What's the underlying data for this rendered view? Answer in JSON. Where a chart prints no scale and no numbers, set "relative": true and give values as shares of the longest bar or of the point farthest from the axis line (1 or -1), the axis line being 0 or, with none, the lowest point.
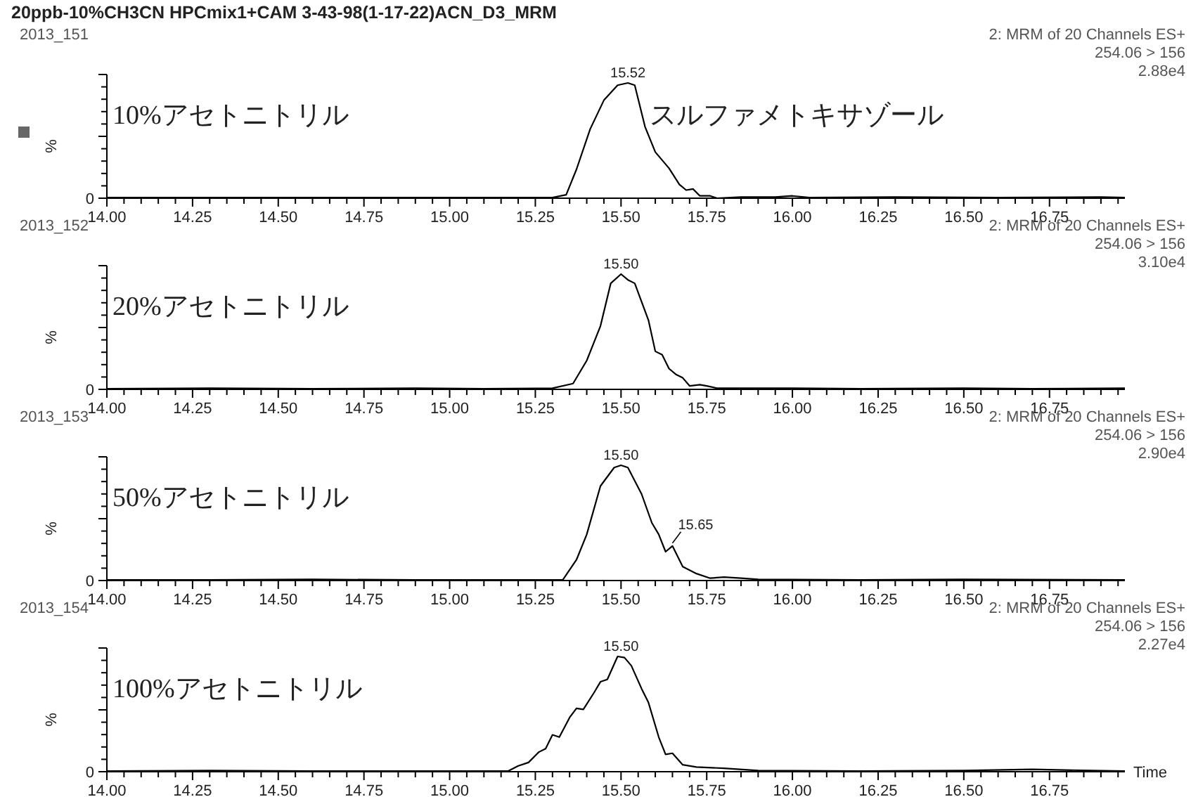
{
  "chart_data": [
    {
      "type": "line",
      "title": "20ppb-10%CH3CN HPCmix1+CAM 3-43-98(1-17-22)ACN_D3_MRM",
      "subtitle": "2013_151",
      "ylabel": "%",
      "relative": true,
      "xlim": [
        14,
        16.97
      ],
      "xticks": [
        {
          "value": 14,
          "label": "14.00"
        },
        {
          "value": 14.25,
          "label": "14.25"
        },
        {
          "value": 14.5,
          "label": "14.50"
        },
        {
          "value": 14.75,
          "label": "14.75"
        },
        {
          "value": 15,
          "label": "15.00"
        },
        {
          "value": 15.25,
          "label": "15.25"
        },
        {
          "value": 15.5,
          "label": "15.50"
        },
        {
          "value": 15.75,
          "label": "15.75"
        },
        {
          "value": 16,
          "label": "16.00"
        },
        {
          "value": 16.25,
          "label": "16.25"
        },
        {
          "value": 16.5,
          "label": "16.50"
        },
        {
          "value": 16.75,
          "label": "16.75"
        },
        {
          "value": 14.05,
          "label": null
        },
        {
          "value": 14.1,
          "label": null
        },
        {
          "value": 14.15,
          "label": null
        },
        {
          "value": 14.2,
          "label": null
        },
        {
          "value": 14.3,
          "label": null
        },
        {
          "value": 14.35,
          "label": null
        },
        {
          "value": 14.4,
          "label": null
        },
        {
          "value": 14.45,
          "label": null
        },
        {
          "value": 14.55,
          "label": null
        },
        {
          "value": 14.6,
          "label": null
        },
        {
          "value": 14.65,
          "label": null
        },
        {
          "value": 14.7,
          "label": null
        },
        {
          "value": 14.8,
          "label": null
        },
        {
          "value": 14.85,
          "label": null
        },
        {
          "value": 14.9,
          "label": null
        },
        {
          "value": 14.95,
          "label": null
        },
        {
          "value": 15.05,
          "label": null
        },
        {
          "value": 15.1,
          "label": null
        },
        {
          "value": 15.15,
          "label": null
        },
        {
          "value": 15.2,
          "label": null
        },
        {
          "value": 15.3,
          "label": null
        },
        {
          "value": 15.35,
          "label": null
        },
        {
          "value": 15.4,
          "label": null
        },
        {
          "value": 15.45,
          "label": null
        },
        {
          "value": 15.55,
          "label": null
        },
        {
          "value": 15.6,
          "label": null
        },
        {
          "value": 15.65,
          "label": null
        },
        {
          "value": 15.7,
          "label": null
        },
        {
          "value": 15.8,
          "label": null
        },
        {
          "value": 15.85,
          "label": null
        },
        {
          "value": 15.9,
          "label": null
        },
        {
          "value": 15.95,
          "label": null
        },
        {
          "value": 16.05,
          "label": null
        },
        {
          "value": 16.1,
          "label": null
        },
        {
          "value": 16.15,
          "label": null
        },
        {
          "value": 16.2,
          "label": null
        },
        {
          "value": 16.3,
          "label": null
        },
        {
          "value": 16.35,
          "label": null
        },
        {
          "value": 16.4,
          "label": null
        },
        {
          "value": 16.45,
          "label": null
        },
        {
          "value": 16.55,
          "label": null
        },
        {
          "value": 16.6,
          "label": null
        },
        {
          "value": 16.65,
          "label": null
        },
        {
          "value": 16.7,
          "label": null
        },
        {
          "value": 16.8,
          "label": null
        },
        {
          "value": 16.85,
          "label": null
        },
        {
          "value": 16.9,
          "label": null
        },
        {
          "value": 16.95,
          "label": null
        }
      ],
      "series": [
        {
          "color": "#000000",
          "x": [
            14.0,
            14.3,
            14.6,
            14.9,
            15.1,
            15.3,
            15.34,
            15.37,
            15.41,
            15.45,
            15.49,
            15.52,
            15.54,
            15.57,
            15.6,
            15.64,
            15.67,
            15.69,
            15.71,
            15.73,
            15.76,
            15.78,
            15.85,
            15.95,
            16.0,
            16.05,
            16.3,
            16.6,
            16.9,
            16.97
          ],
          "values": [
            0.005,
            0.005,
            0.005,
            0.005,
            0.005,
            0.005,
            0.03,
            0.25,
            0.6,
            0.85,
            0.98,
            1.0,
            0.98,
            0.62,
            0.4,
            0.26,
            0.12,
            0.07,
            0.08,
            0.02,
            0.02,
            0.0,
            0.01,
            0.01,
            0.02,
            0.005,
            0.01,
            0.005,
            0.01,
            0.005
          ]
        }
      ],
      "annotations": [
        "2: MRM of 20 Channels ES+",
        "254.06 > 156",
        "2.88e4",
        "0",
        "10%アセトニトリル",
        "スルファメトキサゾール",
        {
          "text": "15.52",
          "x": 15.52,
          "y": 1.0
        }
      ]
    },
    {
      "type": "line",
      "subtitle": "2013_152",
      "ylabel": "%",
      "relative": true,
      "xlim": [
        14,
        16.97
      ],
      "xticks": [
        {
          "value": 14,
          "label": "14.00"
        },
        {
          "value": 14.25,
          "label": "14.25"
        },
        {
          "value": 14.5,
          "label": "14.50"
        },
        {
          "value": 14.75,
          "label": "14.75"
        },
        {
          "value": 15,
          "label": "15.00"
        },
        {
          "value": 15.25,
          "label": "15.25"
        },
        {
          "value": 15.5,
          "label": "15.50"
        },
        {
          "value": 15.75,
          "label": "15.75"
        },
        {
          "value": 16,
          "label": "16.00"
        },
        {
          "value": 16.25,
          "label": "16.25"
        },
        {
          "value": 16.5,
          "label": "16.50"
        },
        {
          "value": 16.75,
          "label": "16.75"
        },
        {
          "value": 14.05,
          "label": null
        },
        {
          "value": 14.1,
          "label": null
        },
        {
          "value": 14.15,
          "label": null
        },
        {
          "value": 14.2,
          "label": null
        },
        {
          "value": 14.3,
          "label": null
        },
        {
          "value": 14.35,
          "label": null
        },
        {
          "value": 14.4,
          "label": null
        },
        {
          "value": 14.45,
          "label": null
        },
        {
          "value": 14.55,
          "label": null
        },
        {
          "value": 14.6,
          "label": null
        },
        {
          "value": 14.65,
          "label": null
        },
        {
          "value": 14.7,
          "label": null
        },
        {
          "value": 14.8,
          "label": null
        },
        {
          "value": 14.85,
          "label": null
        },
        {
          "value": 14.9,
          "label": null
        },
        {
          "value": 14.95,
          "label": null
        },
        {
          "value": 15.05,
          "label": null
        },
        {
          "value": 15.1,
          "label": null
        },
        {
          "value": 15.15,
          "label": null
        },
        {
          "value": 15.2,
          "label": null
        },
        {
          "value": 15.3,
          "label": null
        },
        {
          "value": 15.35,
          "label": null
        },
        {
          "value": 15.4,
          "label": null
        },
        {
          "value": 15.45,
          "label": null
        },
        {
          "value": 15.55,
          "label": null
        },
        {
          "value": 15.6,
          "label": null
        },
        {
          "value": 15.65,
          "label": null
        },
        {
          "value": 15.7,
          "label": null
        },
        {
          "value": 15.8,
          "label": null
        },
        {
          "value": 15.85,
          "label": null
        },
        {
          "value": 15.9,
          "label": null
        },
        {
          "value": 15.95,
          "label": null
        },
        {
          "value": 16.05,
          "label": null
        },
        {
          "value": 16.1,
          "label": null
        },
        {
          "value": 16.15,
          "label": null
        },
        {
          "value": 16.2,
          "label": null
        },
        {
          "value": 16.3,
          "label": null
        },
        {
          "value": 16.35,
          "label": null
        },
        {
          "value": 16.4,
          "label": null
        },
        {
          "value": 16.45,
          "label": null
        },
        {
          "value": 16.55,
          "label": null
        },
        {
          "value": 16.6,
          "label": null
        },
        {
          "value": 16.65,
          "label": null
        },
        {
          "value": 16.7,
          "label": null
        },
        {
          "value": 16.8,
          "label": null
        },
        {
          "value": 16.85,
          "label": null
        },
        {
          "value": 16.9,
          "label": null
        },
        {
          "value": 16.95,
          "label": null
        }
      ],
      "series": [
        {
          "color": "#000000",
          "x": [
            14.0,
            14.3,
            14.6,
            14.9,
            15.1,
            15.3,
            15.36,
            15.4,
            15.44,
            15.47,
            15.5,
            15.52,
            15.54,
            15.58,
            15.6,
            15.62,
            15.64,
            15.66,
            15.68,
            15.7,
            15.73,
            15.75,
            15.78,
            16.0,
            16.2,
            16.5,
            16.7,
            16.97
          ],
          "values": [
            0.005,
            0.01,
            0.005,
            0.01,
            0.005,
            0.01,
            0.05,
            0.25,
            0.55,
            0.92,
            1.0,
            0.95,
            0.92,
            0.6,
            0.33,
            0.3,
            0.18,
            0.13,
            0.1,
            0.03,
            0.04,
            0.03,
            0.01,
            0.01,
            0.005,
            0.01,
            0.005,
            0.01
          ]
        }
      ],
      "annotations": [
        "2: MRM of 20 Channels ES+",
        "254.06 > 156",
        "3.10e4",
        "0",
        "20%アセトニトリル",
        {
          "text": "15.50",
          "x": 15.5,
          "y": 1.0
        }
      ]
    },
    {
      "type": "line",
      "subtitle": "2013_153",
      "ylabel": "%",
      "relative": true,
      "xlim": [
        14,
        16.97
      ],
      "xticks": [
        {
          "value": 14,
          "label": "14.00"
        },
        {
          "value": 14.25,
          "label": "14.25"
        },
        {
          "value": 14.5,
          "label": "14.50"
        },
        {
          "value": 14.75,
          "label": "14.75"
        },
        {
          "value": 15,
          "label": "15.00"
        },
        {
          "value": 15.25,
          "label": "15.25"
        },
        {
          "value": 15.5,
          "label": "15.50"
        },
        {
          "value": 15.75,
          "label": "15.75"
        },
        {
          "value": 16,
          "label": "16.00"
        },
        {
          "value": 16.25,
          "label": "16.25"
        },
        {
          "value": 16.5,
          "label": "16.50"
        },
        {
          "value": 16.75,
          "label": "16.75"
        },
        {
          "value": 14.05,
          "label": null
        },
        {
          "value": 14.1,
          "label": null
        },
        {
          "value": 14.15,
          "label": null
        },
        {
          "value": 14.2,
          "label": null
        },
        {
          "value": 14.3,
          "label": null
        },
        {
          "value": 14.35,
          "label": null
        },
        {
          "value": 14.4,
          "label": null
        },
        {
          "value": 14.45,
          "label": null
        },
        {
          "value": 14.55,
          "label": null
        },
        {
          "value": 14.6,
          "label": null
        },
        {
          "value": 14.65,
          "label": null
        },
        {
          "value": 14.7,
          "label": null
        },
        {
          "value": 14.8,
          "label": null
        },
        {
          "value": 14.85,
          "label": null
        },
        {
          "value": 14.9,
          "label": null
        },
        {
          "value": 14.95,
          "label": null
        },
        {
          "value": 15.05,
          "label": null
        },
        {
          "value": 15.1,
          "label": null
        },
        {
          "value": 15.15,
          "label": null
        },
        {
          "value": 15.2,
          "label": null
        },
        {
          "value": 15.3,
          "label": null
        },
        {
          "value": 15.35,
          "label": null
        },
        {
          "value": 15.4,
          "label": null
        },
        {
          "value": 15.45,
          "label": null
        },
        {
          "value": 15.55,
          "label": null
        },
        {
          "value": 15.6,
          "label": null
        },
        {
          "value": 15.65,
          "label": null
        },
        {
          "value": 15.7,
          "label": null
        },
        {
          "value": 15.8,
          "label": null
        },
        {
          "value": 15.85,
          "label": null
        },
        {
          "value": 15.9,
          "label": null
        },
        {
          "value": 15.95,
          "label": null
        },
        {
          "value": 16.05,
          "label": null
        },
        {
          "value": 16.1,
          "label": null
        },
        {
          "value": 16.15,
          "label": null
        },
        {
          "value": 16.2,
          "label": null
        },
        {
          "value": 16.3,
          "label": null
        },
        {
          "value": 16.35,
          "label": null
        },
        {
          "value": 16.4,
          "label": null
        },
        {
          "value": 16.45,
          "label": null
        },
        {
          "value": 16.55,
          "label": null
        },
        {
          "value": 16.6,
          "label": null
        },
        {
          "value": 16.65,
          "label": null
        },
        {
          "value": 16.7,
          "label": null
        },
        {
          "value": 16.8,
          "label": null
        },
        {
          "value": 16.85,
          "label": null
        },
        {
          "value": 16.9,
          "label": null
        },
        {
          "value": 16.95,
          "label": null
        }
      ],
      "series": [
        {
          "color": "#000000",
          "x": [
            14.0,
            14.3,
            14.6,
            14.9,
            15.1,
            15.33,
            15.37,
            15.4,
            15.44,
            15.48,
            15.5,
            15.52,
            15.56,
            15.59,
            15.61,
            15.63,
            15.65,
            15.68,
            15.72,
            15.76,
            15.8,
            15.85,
            15.9,
            16.2,
            16.5,
            16.97
          ],
          "values": [
            0.005,
            0.005,
            0.01,
            0.005,
            0.005,
            0.005,
            0.18,
            0.4,
            0.82,
            0.98,
            1.0,
            0.98,
            0.75,
            0.5,
            0.4,
            0.25,
            0.3,
            0.12,
            0.06,
            0.02,
            0.03,
            0.02,
            0.01,
            0.005,
            0.01,
            0.005
          ]
        }
      ],
      "annotations": [
        "2: MRM of 20 Channels ES+",
        "254.06 > 156",
        "2.90e4",
        "0",
        "50%アセトニトリル",
        {
          "text": "15.50",
          "x": 15.5,
          "y": 1.0
        },
        {
          "text": "15.65",
          "x": 15.65,
          "y": 0.3
        }
      ]
    },
    {
      "type": "line",
      "subtitle": "2013_154",
      "ylabel": "%",
      "xlabel": "Time",
      "relative": true,
      "xlim": [
        14,
        16.97
      ],
      "xticks": [
        {
          "value": 14,
          "label": "14.00"
        },
        {
          "value": 14.25,
          "label": "14.25"
        },
        {
          "value": 14.5,
          "label": "14.50"
        },
        {
          "value": 14.75,
          "label": "14.75"
        },
        {
          "value": 15,
          "label": "15.00"
        },
        {
          "value": 15.25,
          "label": "15.25"
        },
        {
          "value": 15.5,
          "label": "15.50"
        },
        {
          "value": 15.75,
          "label": "15.75"
        },
        {
          "value": 16,
          "label": "16.00"
        },
        {
          "value": 16.25,
          "label": "16.25"
        },
        {
          "value": 16.5,
          "label": "16.50"
        },
        {
          "value": 16.75,
          "label": "16.75"
        },
        {
          "value": 14.05,
          "label": null
        },
        {
          "value": 14.1,
          "label": null
        },
        {
          "value": 14.15,
          "label": null
        },
        {
          "value": 14.2,
          "label": null
        },
        {
          "value": 14.3,
          "label": null
        },
        {
          "value": 14.35,
          "label": null
        },
        {
          "value": 14.4,
          "label": null
        },
        {
          "value": 14.45,
          "label": null
        },
        {
          "value": 14.55,
          "label": null
        },
        {
          "value": 14.6,
          "label": null
        },
        {
          "value": 14.65,
          "label": null
        },
        {
          "value": 14.7,
          "label": null
        },
        {
          "value": 14.8,
          "label": null
        },
        {
          "value": 14.85,
          "label": null
        },
        {
          "value": 14.9,
          "label": null
        },
        {
          "value": 14.95,
          "label": null
        },
        {
          "value": 15.05,
          "label": null
        },
        {
          "value": 15.1,
          "label": null
        },
        {
          "value": 15.15,
          "label": null
        },
        {
          "value": 15.2,
          "label": null
        },
        {
          "value": 15.3,
          "label": null
        },
        {
          "value": 15.35,
          "label": null
        },
        {
          "value": 15.4,
          "label": null
        },
        {
          "value": 15.45,
          "label": null
        },
        {
          "value": 15.55,
          "label": null
        },
        {
          "value": 15.6,
          "label": null
        },
        {
          "value": 15.65,
          "label": null
        },
        {
          "value": 15.7,
          "label": null
        },
        {
          "value": 15.8,
          "label": null
        },
        {
          "value": 15.85,
          "label": null
        },
        {
          "value": 15.9,
          "label": null
        },
        {
          "value": 15.95,
          "label": null
        },
        {
          "value": 16.05,
          "label": null
        },
        {
          "value": 16.1,
          "label": null
        },
        {
          "value": 16.15,
          "label": null
        },
        {
          "value": 16.2,
          "label": null
        },
        {
          "value": 16.3,
          "label": null
        },
        {
          "value": 16.35,
          "label": null
        },
        {
          "value": 16.4,
          "label": null
        },
        {
          "value": 16.45,
          "label": null
        },
        {
          "value": 16.55,
          "label": null
        },
        {
          "value": 16.6,
          "label": null
        },
        {
          "value": 16.65,
          "label": null
        },
        {
          "value": 16.7,
          "label": null
        },
        {
          "value": 16.8,
          "label": null
        },
        {
          "value": 16.85,
          "label": null
        },
        {
          "value": 16.9,
          "label": null
        },
        {
          "value": 16.95,
          "label": null
        }
      ],
      "series": [
        {
          "color": "#000000",
          "x": [
            14.0,
            14.3,
            14.6,
            14.9,
            15.1,
            15.17,
            15.2,
            15.23,
            15.26,
            15.28,
            15.3,
            15.32,
            15.35,
            15.37,
            15.39,
            15.42,
            15.44,
            15.46,
            15.49,
            15.51,
            15.53,
            15.56,
            15.58,
            15.61,
            15.63,
            15.65,
            15.68,
            15.72,
            15.8,
            15.9,
            16.2,
            16.5,
            16.7,
            16.97
          ],
          "values": [
            0.005,
            0.01,
            0.005,
            0.005,
            0.005,
            0.005,
            0.05,
            0.08,
            0.17,
            0.2,
            0.32,
            0.3,
            0.47,
            0.55,
            0.54,
            0.68,
            0.78,
            0.8,
            1.0,
            0.99,
            0.92,
            0.72,
            0.6,
            0.3,
            0.15,
            0.16,
            0.06,
            0.04,
            0.03,
            0.01,
            0.005,
            0.01,
            0.02,
            0.005
          ]
        }
      ],
      "annotations": [
        "2: MRM of 20 Channels ES+",
        "254.06 > 156",
        "2.27e4",
        "0",
        "100%アセトニトリル",
        {
          "text": "15.50",
          "x": 15.5,
          "y": 1.0
        }
      ]
    }
  ]
}
